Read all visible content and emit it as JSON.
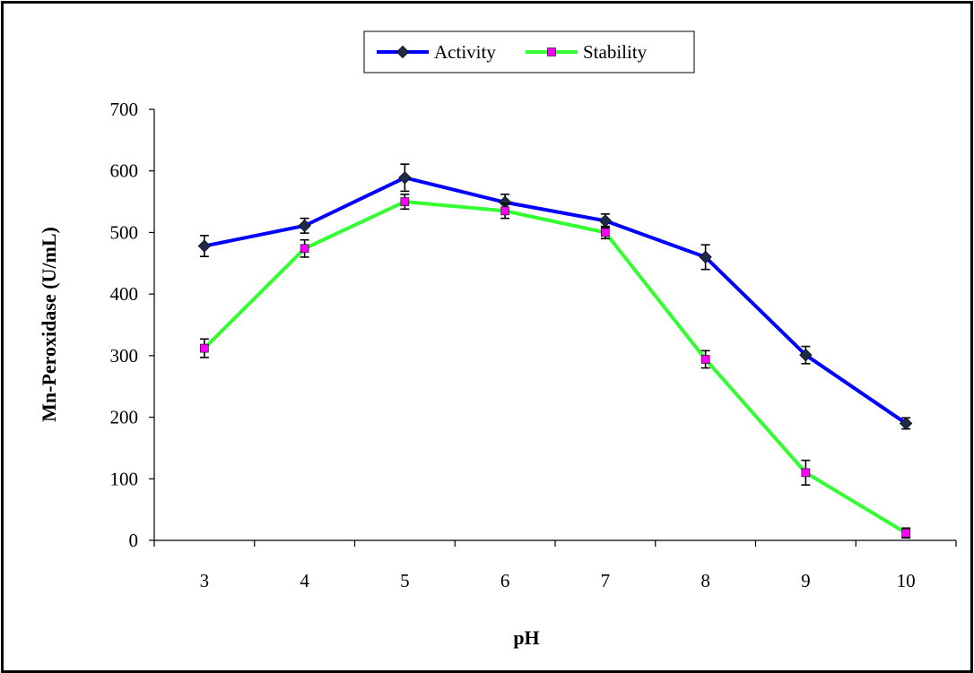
{
  "chart_data": {
    "type": "line",
    "xlabel": "pH",
    "ylabel": "Mn-Peroxidase (U/mL)",
    "categories": [
      "3",
      "4",
      "5",
      "6",
      "7",
      "8",
      "9",
      "10"
    ],
    "ylim": [
      0,
      700
    ],
    "yticks": [
      "0",
      "100",
      "200",
      "300",
      "400",
      "500",
      "600",
      "700"
    ],
    "legend_position": "top-center",
    "grid": false,
    "series": [
      {
        "name": "Activity",
        "values": [
          478,
          511,
          589,
          549,
          519,
          460,
          301,
          190
        ],
        "errors": [
          17,
          12,
          22,
          13,
          11,
          20,
          14,
          9
        ],
        "color": "#0000FF",
        "marker": "diamond",
        "marker_color": "#1F2A44"
      },
      {
        "name": "Stability",
        "values": [
          312,
          474,
          550,
          535,
          500,
          294,
          110,
          12
        ],
        "errors": [
          15,
          14,
          12,
          12,
          10,
          14,
          20,
          8
        ],
        "color": "#33FF33",
        "marker": "square",
        "marker_color": "#FF00FF"
      }
    ]
  }
}
